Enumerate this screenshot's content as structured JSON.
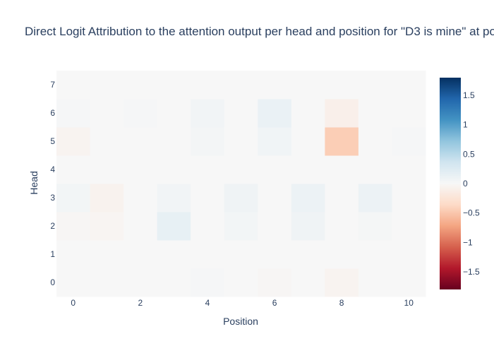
{
  "chart_data": {
    "type": "heatmap",
    "title": "Direct Logit Attribution to the attention output per head and position for \"D3 is mine\" at po",
    "xlabel": "Position",
    "ylabel": "Head",
    "x": [
      0,
      1,
      2,
      3,
      4,
      5,
      6,
      7,
      8,
      9,
      10
    ],
    "y": [
      0,
      1,
      2,
      3,
      4,
      5,
      6,
      7
    ],
    "x_tick_labels": [
      "0",
      "2",
      "4",
      "6",
      "8",
      "10"
    ],
    "x_tick_values": [
      0,
      2,
      4,
      6,
      8,
      10
    ],
    "y_tick_labels": [
      "0",
      "1",
      "2",
      "3",
      "4",
      "5",
      "6",
      "7"
    ],
    "z": [
      [
        0.0,
        0.0,
        0.0,
        0.0,
        0.02,
        0.0,
        -0.02,
        0.0,
        -0.05,
        0.0,
        0.0
      ],
      [
        0.0,
        0.0,
        0.0,
        0.0,
        0.0,
        0.0,
        0.0,
        0.0,
        0.0,
        0.0,
        0.0
      ],
      [
        -0.02,
        -0.04,
        0.0,
        0.15,
        0.0,
        0.05,
        0.0,
        0.08,
        0.0,
        0.03,
        0.0
      ],
      [
        0.05,
        -0.07,
        0.0,
        0.06,
        0.0,
        0.08,
        0.0,
        0.1,
        0.0,
        0.1,
        0.0
      ],
      [
        0.0,
        0.0,
        0.0,
        0.0,
        0.0,
        0.0,
        0.0,
        0.0,
        0.0,
        0.0,
        0.0
      ],
      [
        -0.05,
        0.0,
        0.0,
        0.0,
        0.04,
        0.0,
        0.07,
        0.0,
        -0.45,
        0.0,
        0.02
      ],
      [
        0.02,
        0.0,
        0.02,
        0.0,
        0.06,
        0.0,
        0.12,
        0.0,
        -0.1,
        0.0,
        0.0
      ],
      [
        0.0,
        0.0,
        0.0,
        0.0,
        0.0,
        0.0,
        0.0,
        0.0,
        0.0,
        0.0,
        0.0
      ]
    ],
    "colorscale": "RdBu",
    "zlim": [
      -1.8,
      1.8
    ],
    "colorbar_tick_values": [
      1.5,
      1,
      0.5,
      0,
      -0.5,
      -1,
      -1.5
    ],
    "colorbar_tick_labels": [
      "1.5",
      "1",
      "0.5",
      "0",
      "−0.5",
      "−1",
      "−1.5"
    ],
    "grid": false,
    "colors": {
      "background": "#ffffff",
      "text": "#2a3f5f"
    }
  }
}
